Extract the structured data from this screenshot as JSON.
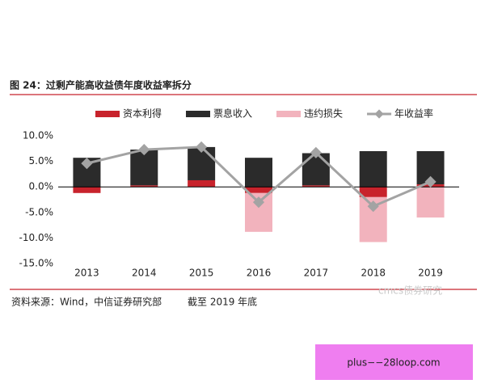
{
  "header": {
    "title": "图 24：过剩产能高收益债年度收益率拆分"
  },
  "chart_data": {
    "type": "bar",
    "categories": [
      "2013",
      "2014",
      "2015",
      "2016",
      "2017",
      "2018",
      "2019"
    ],
    "series": [
      {
        "name": "资本利得",
        "color": "#c8232c",
        "values": [
          -1.2,
          0.3,
          1.3,
          -1.2,
          0.3,
          -2.0,
          0.5
        ]
      },
      {
        "name": "票息收入",
        "color": "#2b2b2b",
        "values": [
          5.7,
          7.0,
          6.5,
          5.7,
          6.3,
          7.0,
          6.5
        ]
      },
      {
        "name": "违约损失",
        "color": "#f2b3bd",
        "values": [
          0,
          0,
          0,
          -7.6,
          0,
          -8.8,
          -6.0
        ]
      },
      {
        "name": "年收益率",
        "color": "#a3a3a3",
        "type": "line",
        "values": [
          4.6,
          7.3,
          7.8,
          -3.0,
          6.7,
          -3.8,
          1.0
        ]
      }
    ],
    "ylim": [
      -15,
      10
    ],
    "yticks": [
      {
        "value": -15,
        "label": "-15.0%"
      },
      {
        "value": -10,
        "label": "-10.0%"
      },
      {
        "value": -5,
        "label": "-5.0%"
      },
      {
        "value": 0,
        "label": "0.0%"
      },
      {
        "value": 5,
        "label": "5.0%"
      },
      {
        "value": 10,
        "label": "10.0%"
      }
    ],
    "grid": false,
    "legend": "top"
  },
  "footer": {
    "source": "资料来源：Wind，中信证券研究部",
    "note": "截至 2019 年底"
  },
  "watermark": "cmcs债券研究",
  "overlay": "plus−−28loop.com"
}
